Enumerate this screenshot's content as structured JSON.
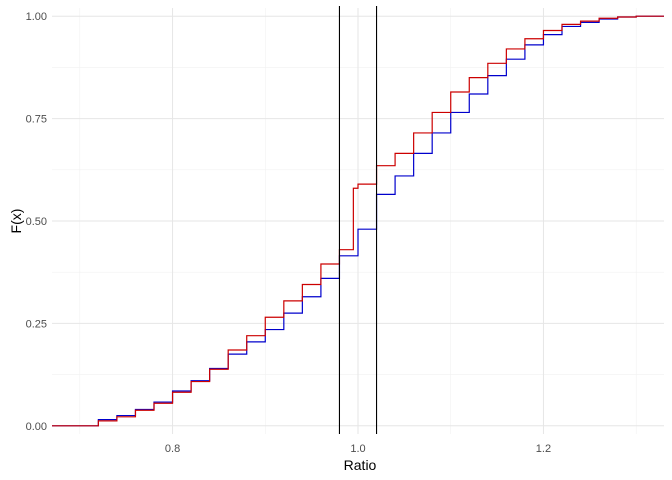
{
  "chart_data": {
    "type": "line",
    "xlabel": "Ratio",
    "ylabel": "F(x)",
    "xlim": [
      0.67,
      1.33
    ],
    "ylim": [
      -0.02,
      1.02
    ],
    "x_ticks": [
      {
        "value": 0.8,
        "label": "0.8"
      },
      {
        "value": 1.0,
        "label": "1.0"
      },
      {
        "value": 1.2,
        "label": "1.2"
      }
    ],
    "y_ticks": [
      {
        "value": 0.0,
        "label": "0.00"
      },
      {
        "value": 0.25,
        "label": "0.25"
      },
      {
        "value": 0.5,
        "label": "0.50"
      },
      {
        "value": 0.75,
        "label": "0.75"
      },
      {
        "value": 1.0,
        "label": "1.00"
      }
    ],
    "x_minor_ticks": [
      0.7,
      0.9,
      1.1,
      1.3
    ],
    "y_minor_ticks": [
      0.125,
      0.375,
      0.625,
      0.875
    ],
    "grid": true,
    "legend": "none",
    "vlines": [
      0.98,
      1.02
    ],
    "vline_color": "#000000",
    "series": [
      {
        "color": "#0000cc",
        "points": [
          [
            0.67,
            0.0
          ],
          [
            0.7,
            0.0
          ],
          [
            0.72,
            0.015
          ],
          [
            0.74,
            0.025
          ],
          [
            0.76,
            0.04
          ],
          [
            0.78,
            0.058
          ],
          [
            0.8,
            0.085
          ],
          [
            0.82,
            0.11
          ],
          [
            0.84,
            0.14
          ],
          [
            0.86,
            0.175
          ],
          [
            0.88,
            0.205
          ],
          [
            0.9,
            0.235
          ],
          [
            0.92,
            0.275
          ],
          [
            0.94,
            0.315
          ],
          [
            0.96,
            0.36
          ],
          [
            0.98,
            0.415
          ],
          [
            1.0,
            0.48
          ],
          [
            1.02,
            0.565
          ],
          [
            1.04,
            0.61
          ],
          [
            1.06,
            0.665
          ],
          [
            1.08,
            0.715
          ],
          [
            1.1,
            0.765
          ],
          [
            1.12,
            0.81
          ],
          [
            1.14,
            0.855
          ],
          [
            1.16,
            0.895
          ],
          [
            1.18,
            0.93
          ],
          [
            1.2,
            0.955
          ],
          [
            1.22,
            0.975
          ],
          [
            1.24,
            0.985
          ],
          [
            1.26,
            0.993
          ],
          [
            1.28,
            0.998
          ],
          [
            1.3,
            1.0
          ],
          [
            1.33,
            1.0
          ]
        ]
      },
      {
        "color": "#cc0000",
        "points": [
          [
            0.67,
            0.0
          ],
          [
            0.7,
            0.0
          ],
          [
            0.72,
            0.012
          ],
          [
            0.74,
            0.022
          ],
          [
            0.76,
            0.038
          ],
          [
            0.78,
            0.055
          ],
          [
            0.8,
            0.082
          ],
          [
            0.82,
            0.108
          ],
          [
            0.84,
            0.138
          ],
          [
            0.86,
            0.185
          ],
          [
            0.88,
            0.22
          ],
          [
            0.9,
            0.265
          ],
          [
            0.92,
            0.305
          ],
          [
            0.94,
            0.345
          ],
          [
            0.96,
            0.395
          ],
          [
            0.98,
            0.43
          ],
          [
            0.995,
            0.46
          ],
          [
            0.995,
            0.58
          ],
          [
            1.0,
            0.59
          ],
          [
            1.02,
            0.635
          ],
          [
            1.04,
            0.665
          ],
          [
            1.06,
            0.715
          ],
          [
            1.08,
            0.765
          ],
          [
            1.1,
            0.815
          ],
          [
            1.12,
            0.85
          ],
          [
            1.14,
            0.885
          ],
          [
            1.16,
            0.92
          ],
          [
            1.18,
            0.945
          ],
          [
            1.2,
            0.965
          ],
          [
            1.22,
            0.98
          ],
          [
            1.24,
            0.988
          ],
          [
            1.26,
            0.995
          ],
          [
            1.28,
            0.998
          ],
          [
            1.3,
            1.0
          ],
          [
            1.33,
            1.0
          ]
        ]
      }
    ]
  }
}
